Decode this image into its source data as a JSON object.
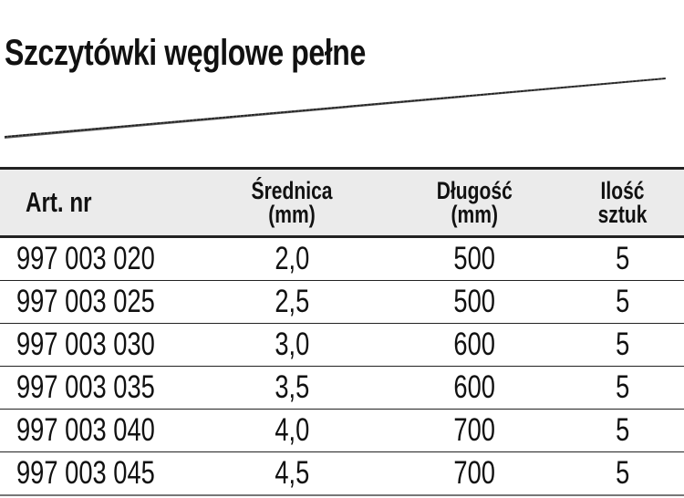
{
  "title": "Szczytówki węglowe pełne",
  "table": {
    "headers": [
      {
        "line1": "Art. nr",
        "line2": ""
      },
      {
        "line1": "Średnica",
        "line2": "(mm)"
      },
      {
        "line1": "Długość",
        "line2": "(mm)"
      },
      {
        "line1": "Ilość",
        "line2": "sztuk"
      }
    ],
    "rows": [
      [
        "997 003 020",
        "2,0",
        "500",
        "5"
      ],
      [
        "997 003 025",
        "2,5",
        "500",
        "5"
      ],
      [
        "997 003 030",
        "3,0",
        "600",
        "5"
      ],
      [
        "997 003 035",
        "3,5",
        "600",
        "5"
      ],
      [
        "997 003 040",
        "4,0",
        "700",
        "5"
      ],
      [
        "997 003 045",
        "4,5",
        "700",
        "5"
      ]
    ]
  }
}
